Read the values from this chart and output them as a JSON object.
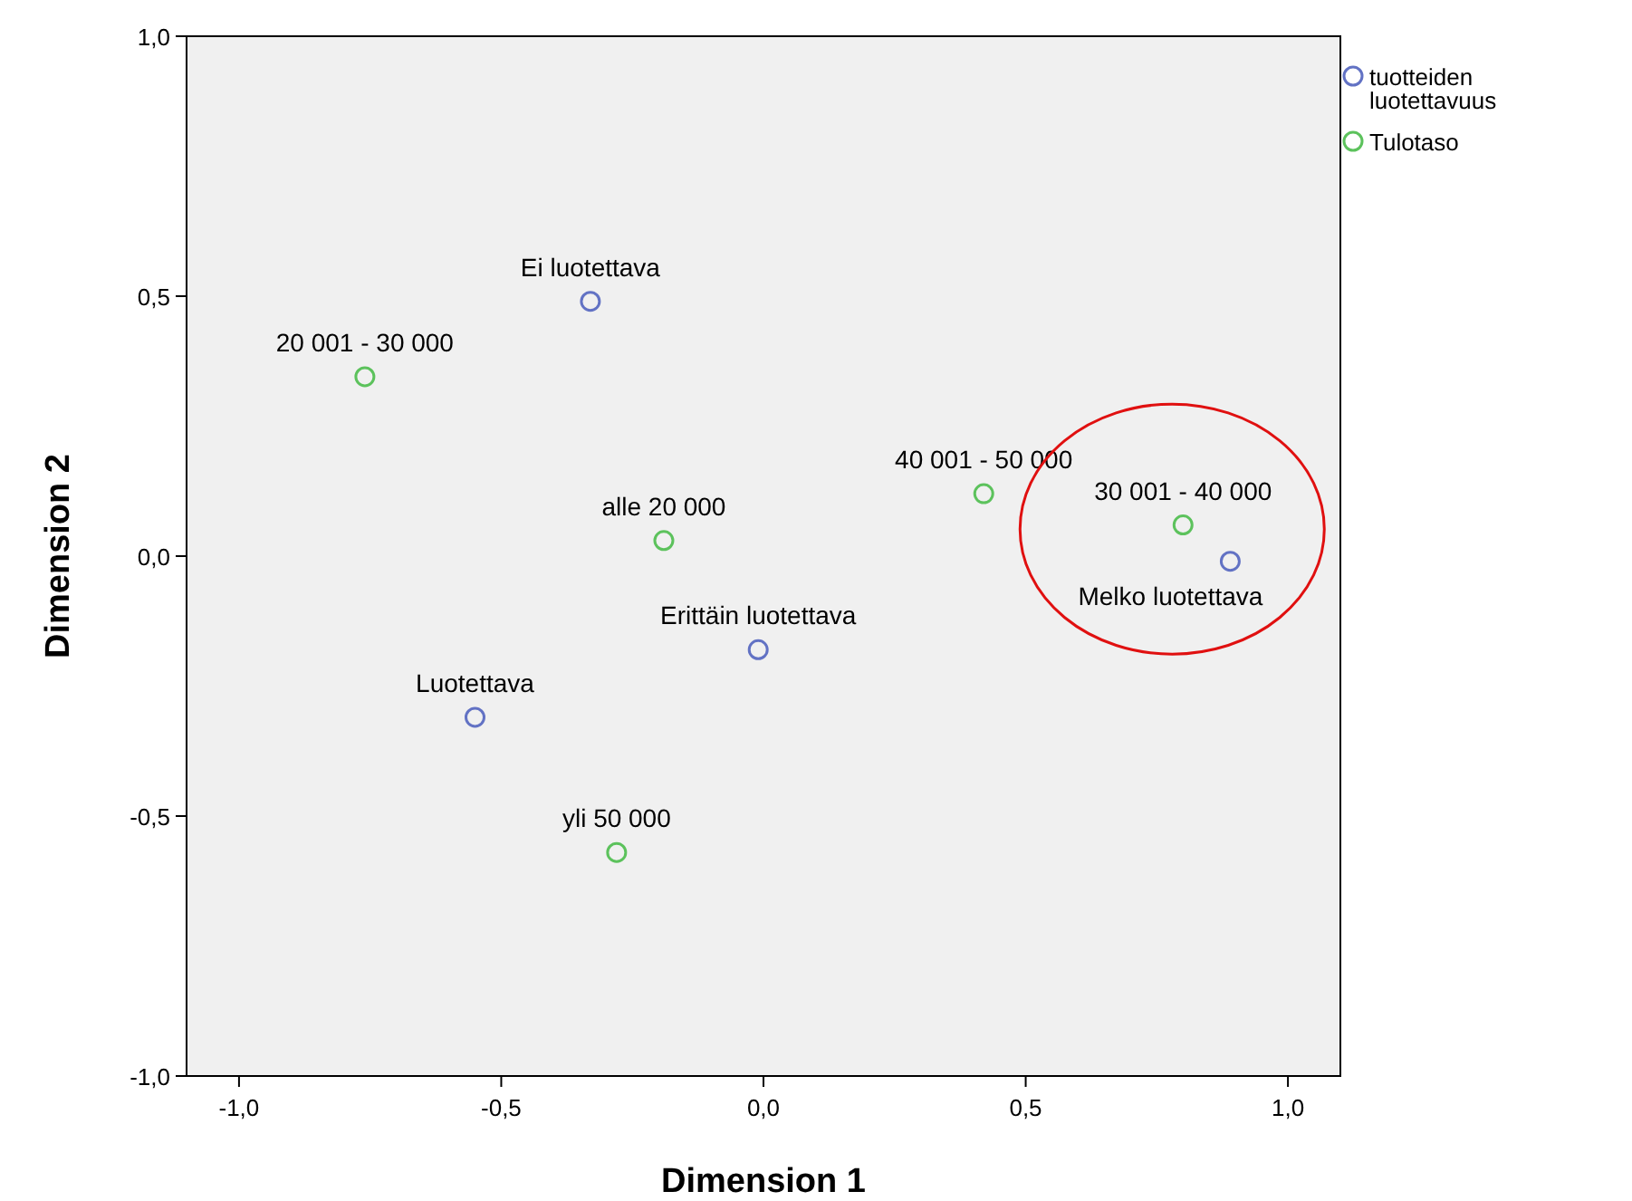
{
  "chart_data": {
    "type": "scatter",
    "xlabel": "Dimension 1",
    "ylabel": "Dimension 2",
    "xlim": [
      -1.1,
      1.1
    ],
    "ylim": [
      -1,
      1
    ],
    "xticks": [
      {
        "value": -1,
        "label": "-1,0"
      },
      {
        "value": -0.5,
        "label": "-0,5"
      },
      {
        "value": 0,
        "label": "0,0"
      },
      {
        "value": 0.5,
        "label": "0,5"
      },
      {
        "value": 1,
        "label": "1,0"
      }
    ],
    "yticks": [
      {
        "value": -1,
        "label": "-1,0"
      },
      {
        "value": -0.5,
        "label": "-0,5"
      },
      {
        "value": 0,
        "label": "0,0"
      },
      {
        "value": 0.5,
        "label": "0,5"
      },
      {
        "value": 1,
        "label": "1,0"
      }
    ],
    "grid": false,
    "legend": "top right",
    "marker": "circle",
    "series": [
      {
        "name": "tuotteiden luotettavuus",
        "color": "#6272c4",
        "x": [
          -0.33,
          0.89,
          -0.01,
          -0.55
        ],
        "values": [
          0.49,
          -0.01,
          -0.18,
          -0.31
        ]
      },
      {
        "name": "Tulotaso",
        "color": "#5cc25c",
        "x": [
          -0.76,
          0.42,
          -0.19,
          0.8,
          -0.28
        ],
        "values": [
          0.345,
          0.12,
          0.03,
          0.06,
          -0.57
        ]
      }
    ],
    "annotations": [
      {
        "text": "Ei luotettava",
        "x": -0.33,
        "y": 0.49
      },
      {
        "text": "Melko luotettava",
        "x": 0.89,
        "y": -0.01
      },
      {
        "text": "Erittäin luotettava",
        "x": -0.01,
        "y": -0.18
      },
      {
        "text": "Luotettava",
        "x": -0.55,
        "y": -0.31
      },
      {
        "text": "20 001 - 30 000",
        "x": -0.76,
        "y": 0.345
      },
      {
        "text": "40 001 - 50 000",
        "x": 0.42,
        "y": 0.12
      },
      {
        "text": "alle 20 000",
        "x": -0.19,
        "y": 0.03
      },
      {
        "text": "30 001 - 40 000",
        "x": 0.8,
        "y": 0.06
      },
      {
        "text": "yli 50 000",
        "x": -0.28,
        "y": -0.57
      }
    ]
  }
}
